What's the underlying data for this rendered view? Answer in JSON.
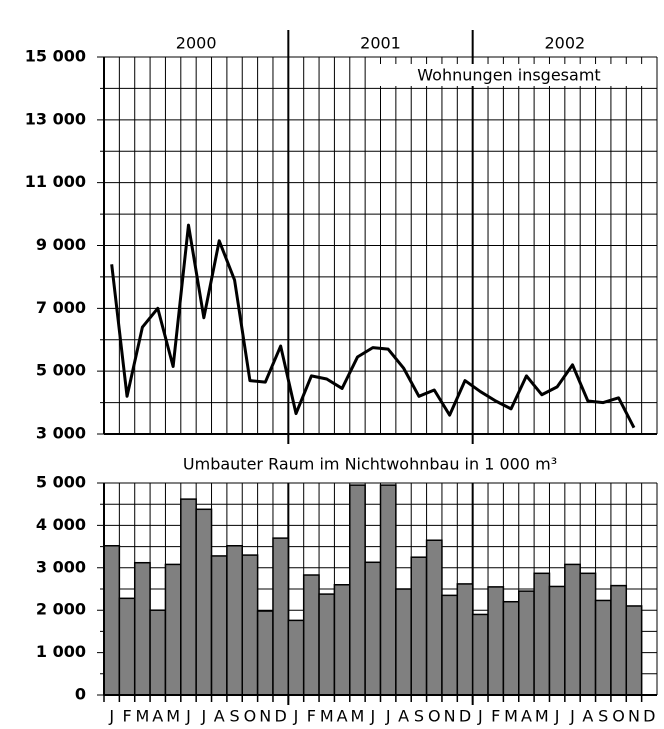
{
  "chart_data": [
    {
      "type": "line",
      "years": [
        "2000",
        "2001",
        "2002"
      ],
      "annotation": "Wohnungen insgesamt",
      "color": "#000000",
      "values": [
        8400,
        4200,
        6400,
        7000,
        5150,
        9650,
        6700,
        9150,
        7900,
        4700,
        4650,
        5800,
        3650,
        4850,
        4750,
        4450,
        5450,
        5750,
        5700,
        5100,
        4200,
        4400,
        3600,
        4700,
        4350,
        4050,
        3800,
        4850,
        4250,
        4500,
        5200,
        4050,
        4000,
        4150,
        3200,
        null
      ],
      "ylim": [
        3000,
        15000
      ],
      "yticks": [
        {
          "value": 3000,
          "label": "3 000"
        },
        {
          "value": 5000,
          "label": "5 000"
        },
        {
          "value": 7000,
          "label": "7 000"
        },
        {
          "value": 9000,
          "label": "9 000"
        },
        {
          "value": 11000,
          "label": "11 000"
        },
        {
          "value": 13000,
          "label": "13 000"
        },
        {
          "value": 15000,
          "label": "15 000"
        }
      ],
      "grid": true
    },
    {
      "type": "bar",
      "title": "Umbauter Raum im Nichtwohnbau in 1 000 m³",
      "color": "#808080",
      "categories": [
        "J",
        "F",
        "M",
        "A",
        "M",
        "J",
        "J",
        "A",
        "S",
        "O",
        "N",
        "D",
        "J",
        "F",
        "M",
        "A",
        "M",
        "J",
        "J",
        "A",
        "S",
        "O",
        "N",
        "D",
        "J",
        "F",
        "M",
        "A",
        "M",
        "J",
        "J",
        "A",
        "S",
        "O",
        "N",
        "D"
      ],
      "values": [
        3520,
        2280,
        3120,
        2000,
        3080,
        4620,
        4380,
        3280,
        3520,
        3300,
        1980,
        3700,
        1760,
        2830,
        2380,
        2600,
        4950,
        3130,
        4950,
        2500,
        3250,
        3650,
        2350,
        2620,
        1900,
        2550,
        2200,
        2450,
        2870,
        2560,
        3080,
        2870,
        2230,
        2580,
        2100,
        null
      ],
      "ylim": [
        0,
        5000
      ],
      "yticks": [
        0,
        {
          "value": 1000,
          "label": "1 000"
        },
        {
          "value": 2000,
          "label": "2 000"
        },
        {
          "value": 3000,
          "label": "3 000"
        },
        {
          "value": 4000,
          "label": "4 000"
        },
        {
          "value": 5000,
          "label": "5 000"
        }
      ],
      "grid": true
    }
  ]
}
